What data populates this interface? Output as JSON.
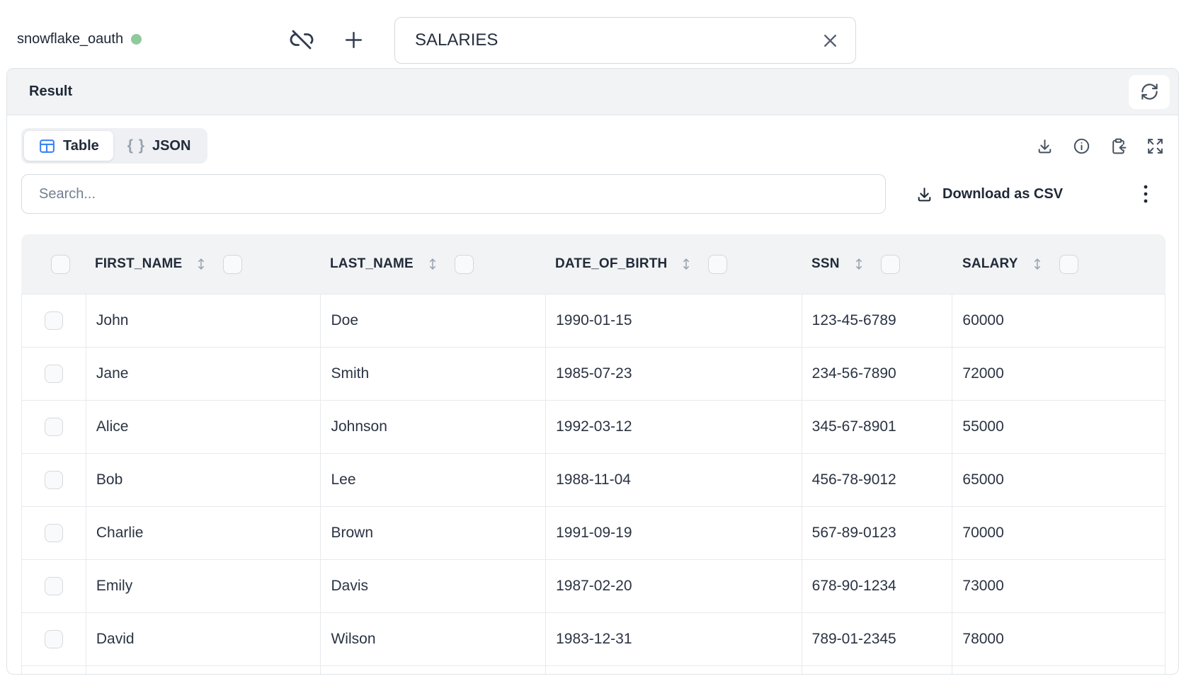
{
  "topbar": {
    "connection_name": "snowflake_oauth",
    "table_name_value": "SALARIES"
  },
  "result_panel": {
    "title": "Result",
    "tabs": [
      {
        "label": "Table",
        "active": true
      },
      {
        "label": "JSON",
        "active": false
      }
    ],
    "search_placeholder": "Search...",
    "download_csv_label": "Download as CSV"
  },
  "table": {
    "columns": [
      "FIRST_NAME",
      "LAST_NAME",
      "DATE_OF_BIRTH",
      "SSN",
      "SALARY"
    ],
    "rows": [
      [
        "John",
        "Doe",
        "1990-01-15",
        "123-45-6789",
        "60000"
      ],
      [
        "Jane",
        "Smith",
        "1985-07-23",
        "234-56-7890",
        "72000"
      ],
      [
        "Alice",
        "Johnson",
        "1992-03-12",
        "345-67-8901",
        "55000"
      ],
      [
        "Bob",
        "Lee",
        "1988-11-04",
        "456-78-9012",
        "65000"
      ],
      [
        "Charlie",
        "Brown",
        "1991-09-19",
        "567-89-0123",
        "70000"
      ],
      [
        "Emily",
        "Davis",
        "1987-02-20",
        "678-90-1234",
        "73000"
      ],
      [
        "David",
        "Wilson",
        "1983-12-31",
        "789-01-2345",
        "78000"
      ]
    ]
  },
  "icons": {
    "connection-unlink-icon": "link-off",
    "add-icon": "+",
    "clear-input-icon": "x",
    "refresh-icon": "circular-arrows",
    "table-view-icon": "grid-table",
    "json-view-icon": "{ }",
    "download-icon": "arrow-down-tray",
    "info-icon": "i-circle",
    "paste-result-icon": "clipboard-arrow-in",
    "fullscreen-icon": "expand-arrows",
    "more-menu-icon": "kebab-dots",
    "sort-icon": "up-down-arrows",
    "checkbox": "rounded-square"
  },
  "colors": {
    "accent_blue": "#3b82f6",
    "status_green": "#8fca9c",
    "bar_gray": "#f1f3f4",
    "border_gray": "#e7e9ec",
    "text_dark": "#1f2937"
  }
}
